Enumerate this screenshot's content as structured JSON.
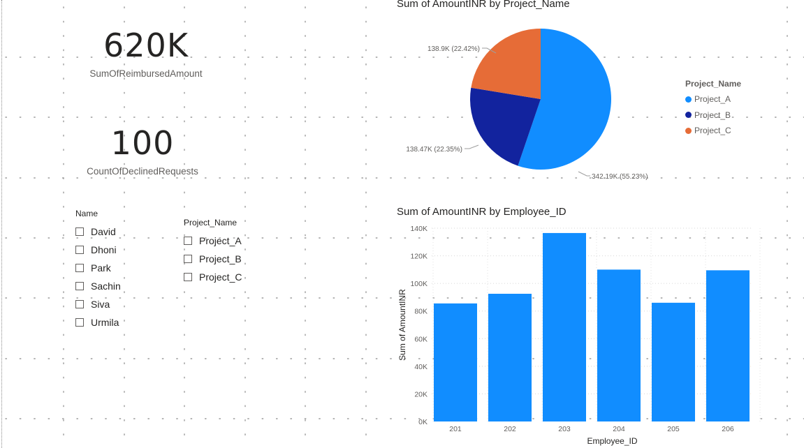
{
  "cards": [
    {
      "value": "620K",
      "label": "SumOfReimbursedAmount"
    },
    {
      "value": "100",
      "label": "CountOfDeclinedRequests"
    }
  ],
  "slicers": {
    "name": {
      "header": "Name",
      "items": [
        "David",
        "Dhoni",
        "Park",
        "Sachin",
        "Siva",
        "Urmila"
      ]
    },
    "project": {
      "header": "Project_Name",
      "items": [
        "Project_A",
        "Project_B",
        "Project_C"
      ]
    }
  },
  "pie": {
    "title": "Sum of AmountINR by Project_Name",
    "legend_title": "Project_Name",
    "slices": [
      {
        "name": "Project_A",
        "value": 342190,
        "label": "342.19K (55.23%)",
        "color": "#118DFF"
      },
      {
        "name": "Project_B",
        "value": 138470,
        "label": "138.47K (22.35%)",
        "color": "#12239E"
      },
      {
        "name": "Project_C",
        "value": 138900,
        "label": "138.9K (22.42%)",
        "color": "#E66C37"
      }
    ]
  },
  "bar": {
    "title": "Sum of AmountINR by Employee_ID",
    "xlabel": "Employee_ID",
    "ylabel": "Sum of AmountINR",
    "color": "#118DFF"
  },
  "chart_data": [
    {
      "type": "pie",
      "title": "Sum of AmountINR by Project_Name",
      "categories": [
        "Project_A",
        "Project_B",
        "Project_C"
      ],
      "values": [
        342190,
        138470,
        138900
      ],
      "percentages": [
        55.23,
        22.35,
        22.42
      ],
      "legend_placement": "right"
    },
    {
      "type": "bar",
      "title": "Sum of AmountINR by Employee_ID",
      "xlabel": "Employee_ID",
      "ylabel": "Sum of AmountINR",
      "categories": [
        "201",
        "202",
        "203",
        "204",
        "205",
        "206"
      ],
      "values": [
        85500,
        92500,
        136500,
        110000,
        86000,
        109500
      ],
      "ylim": [
        0,
        140000
      ],
      "yticks": [
        0,
        20000,
        40000,
        60000,
        80000,
        100000,
        120000,
        140000
      ],
      "ytick_labels": [
        "0K",
        "20K",
        "40K",
        "60K",
        "80K",
        "100K",
        "120K",
        "140K"
      ],
      "grid": true
    }
  ]
}
